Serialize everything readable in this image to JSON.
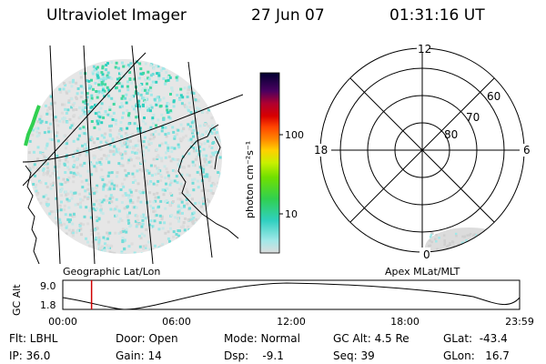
{
  "header": {
    "title": "Ultraviolet Imager",
    "date": "27 Jun 07",
    "time": "01:31:16 UT"
  },
  "colorbar": {
    "label": "photon cm⁻²s⁻¹",
    "tick_100": "100",
    "tick_10": "10",
    "colors": [
      "#000030",
      "#1a0040",
      "#4a0060",
      "#8a0060",
      "#b00030",
      "#d80000",
      "#ff4400",
      "#ff8800",
      "#ffd000",
      "#c8f000",
      "#70e000",
      "#30d050",
      "#30d0c0",
      "#a0e8e8",
      "#dcdcdc"
    ]
  },
  "left_panel": {
    "caption": "Geographic Lat/Lon"
  },
  "right_panel": {
    "caption": "Apex MLat/MLT",
    "mlt_12": "12",
    "mlt_18": "18",
    "mlt_6": "6",
    "mlt_0": "0",
    "lat_60": "60",
    "lat_70": "70",
    "lat_80": "80"
  },
  "orbit": {
    "ylabel": "GC Alt",
    "y_top": "9.0",
    "y_bot": "1.8",
    "x_ticks": [
      "00:00",
      "06:00",
      "12:00",
      "18:00",
      "23:59"
    ],
    "current_time_fraction": 0.063
  },
  "info": {
    "flt": "Flt: LBHL",
    "ip": "IP: 36.0",
    "door": "Door: Open",
    "gain": "Gain: 14",
    "mode": "Mode: Normal",
    "dsp": "Dsp:    -9.1",
    "gcalt": "GC Alt: 4.5 Re",
    "seq": "Seq: 39",
    "glat": "GLat:  -43.4",
    "glon": "GLon:   16.7"
  }
}
